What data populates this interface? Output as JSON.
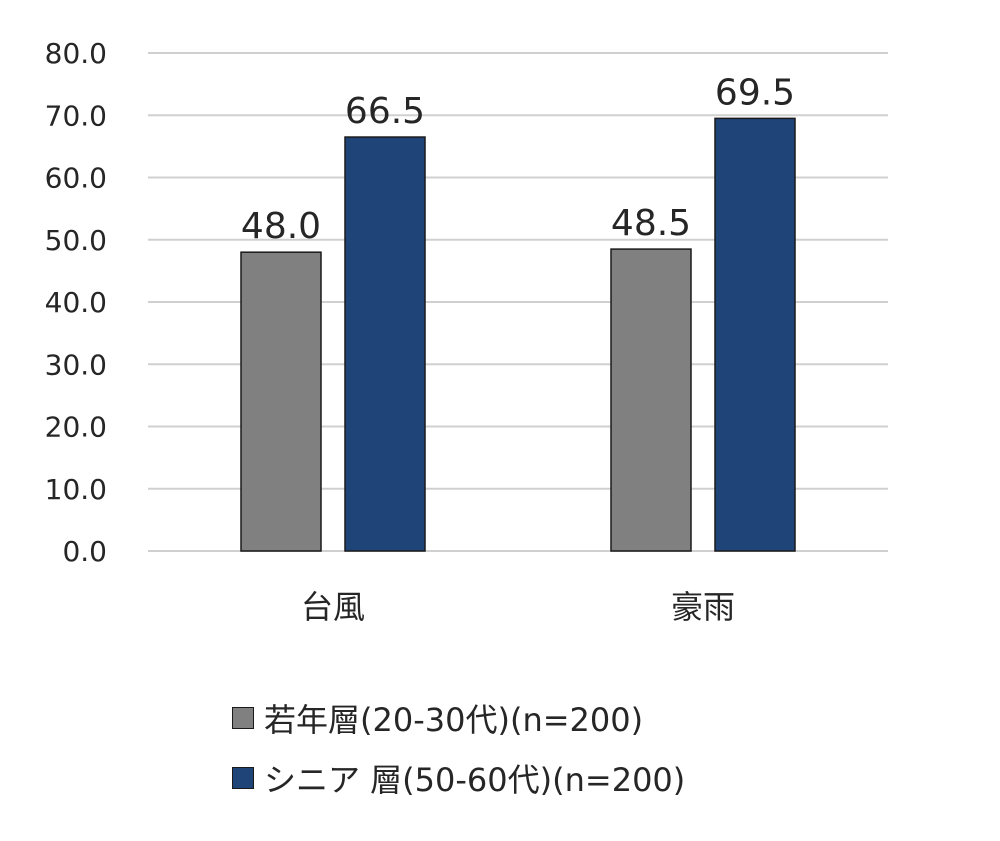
{
  "chart_data": {
    "type": "bar",
    "categories": [
      "台風",
      "豪雨"
    ],
    "series": [
      {
        "name": "若年層(20-30代)(n=200)",
        "values": [
          48.0,
          48.5
        ],
        "color": "#808080"
      },
      {
        "name": "シニア 層(50-60代)(n=200)",
        "values": [
          66.5,
          69.5
        ],
        "color": "#1f4478"
      }
    ],
    "title": "",
    "xlabel": "",
    "ylabel": "",
    "ylim": [
      0,
      80
    ],
    "yticks": [
      "0.0",
      "10.0",
      "20.0",
      "30.0",
      "40.0",
      "50.0",
      "60.0",
      "70.0",
      "80.0"
    ],
    "data_labels": [
      [
        "48.0",
        "48.5"
      ],
      [
        "66.5",
        "69.5"
      ]
    ],
    "grid": true,
    "legend_position": "bottom"
  }
}
